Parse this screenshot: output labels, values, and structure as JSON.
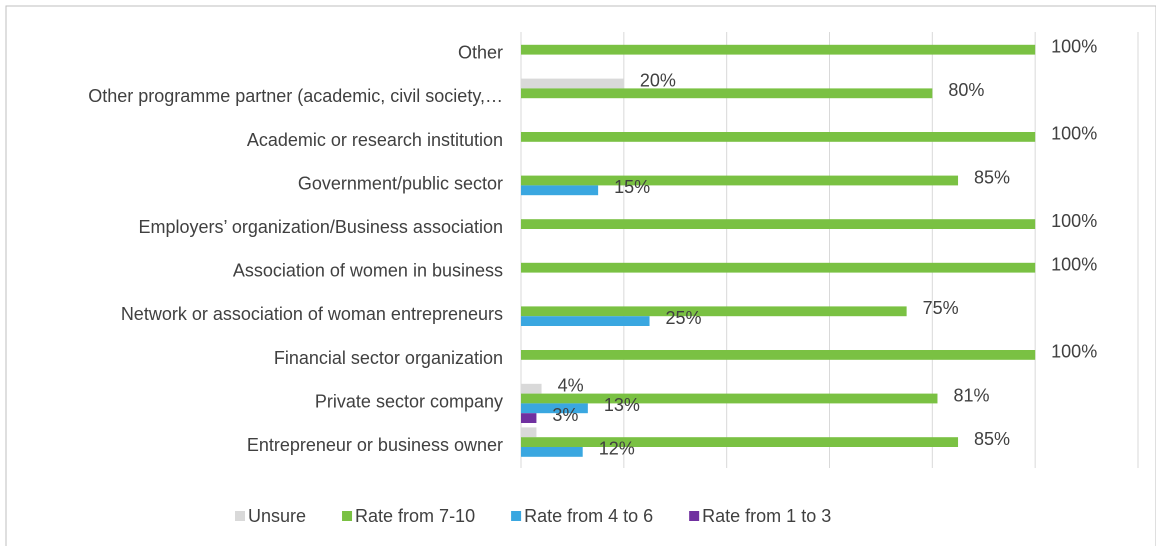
{
  "chart_data": {
    "type": "hbar",
    "categories": [
      "Other",
      "Other programme partner (academic, civil society,…",
      "Academic or research institution",
      "Government/public sector",
      "Employers’ organization/Business association",
      "Association of women in business",
      "Network or association of woman entrepreneurs",
      "Financial sector organization",
      "Private sector company",
      "Entrepreneur or business owner"
    ],
    "series": [
      {
        "name": "Unsure",
        "color": "#d9d9d9",
        "values": [
          null,
          20,
          null,
          null,
          null,
          null,
          null,
          null,
          4,
          3
        ],
        "value_labels": [
          null,
          "20%",
          null,
          null,
          null,
          null,
          null,
          null,
          "4%",
          null
        ]
      },
      {
        "name": "Rate from 7-10",
        "color": "#7ac143",
        "values": [
          100,
          80,
          100,
          85,
          100,
          100,
          75,
          100,
          81,
          85
        ],
        "value_labels": [
          "100%",
          "80%",
          "100%",
          "85%",
          "100%",
          "100%",
          "75%",
          "100%",
          "81%",
          "85%"
        ]
      },
      {
        "name": "Rate  from 4 to 6",
        "color": "#3aa7e0",
        "values": [
          null,
          null,
          null,
          15,
          null,
          null,
          25,
          null,
          13,
          12
        ],
        "value_labels": [
          null,
          null,
          null,
          "15%",
          null,
          null,
          "25%",
          null,
          "13%",
          "12%"
        ]
      },
      {
        "name": "Rate  from 1 to 3",
        "color": "#7030a0",
        "values": [
          null,
          null,
          null,
          null,
          null,
          null,
          null,
          null,
          3,
          null
        ],
        "value_labels": [
          null,
          null,
          null,
          null,
          null,
          null,
          null,
          null,
          "3%",
          null
        ]
      }
    ],
    "xlim": [
      0,
      120
    ],
    "xticks": [
      0,
      20,
      40,
      60,
      80,
      100,
      120
    ],
    "grid": true,
    "legend": "bottom"
  }
}
